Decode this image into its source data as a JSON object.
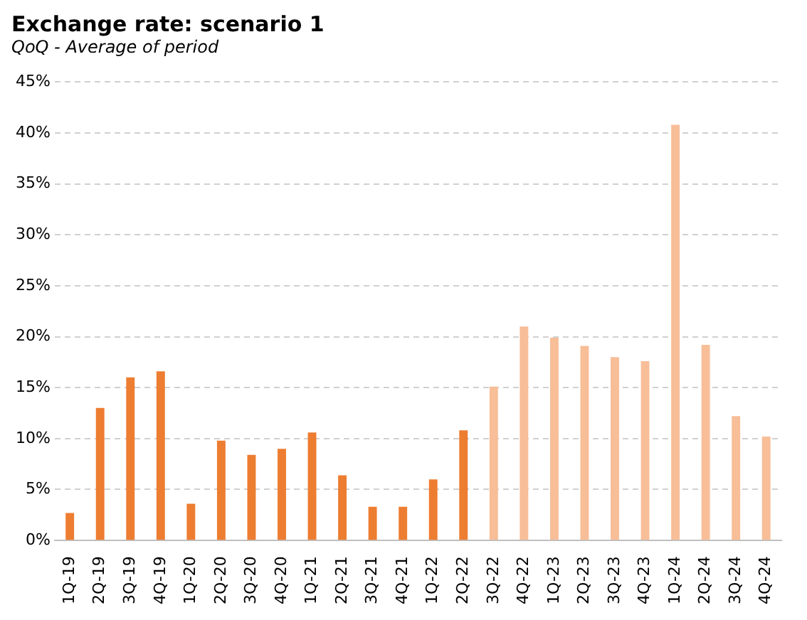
{
  "chart_data": {
    "type": "bar",
    "title": "Exchange rate: scenario 1",
    "subtitle": "QoQ - Average of period",
    "categories": [
      "1Q-19",
      "2Q-19",
      "3Q-19",
      "4Q-19",
      "1Q-20",
      "2Q-20",
      "3Q-20",
      "4Q-20",
      "1Q-21",
      "2Q-21",
      "3Q-21",
      "4Q-21",
      "1Q-22",
      "2Q-22",
      "3Q-22",
      "4Q-22",
      "1Q-23",
      "2Q-23",
      "3Q-23",
      "4Q-23",
      "1Q-24",
      "2Q-24",
      "3Q-24",
      "4Q-24"
    ],
    "values": [
      2.7,
      13.0,
      16.0,
      16.6,
      3.6,
      9.8,
      8.4,
      9.0,
      10.6,
      6.4,
      3.3,
      3.3,
      6.0,
      10.8,
      15.1,
      21.0,
      19.9,
      19.1,
      18.0,
      17.6,
      40.8,
      19.2,
      12.2,
      10.2
    ],
    "colors": [
      "#ed7d31",
      "#ed7d31",
      "#ed7d31",
      "#ed7d31",
      "#ed7d31",
      "#ed7d31",
      "#ed7d31",
      "#ed7d31",
      "#ed7d31",
      "#ed7d31",
      "#ed7d31",
      "#ed7d31",
      "#ed7d31",
      "#ed7d31",
      "#f7be98",
      "#f7be98",
      "#f7be98",
      "#f7be98",
      "#f7be98",
      "#f7be98",
      "#f7be98",
      "#f7be98",
      "#f7be98",
      "#f7be98"
    ],
    "ylim": [
      0,
      45
    ],
    "yticks": [
      {
        "value": 0,
        "label": "0%"
      },
      {
        "value": 5,
        "label": "5%"
      },
      {
        "value": 10,
        "label": "10%"
      },
      {
        "value": 15,
        "label": "15%"
      },
      {
        "value": 20,
        "label": "20%"
      },
      {
        "value": 25,
        "label": "25%"
      },
      {
        "value": 30,
        "label": "30%"
      },
      {
        "value": 35,
        "label": "35%"
      },
      {
        "value": 40,
        "label": "40%"
      },
      {
        "value": 45,
        "label": "45%"
      }
    ],
    "grid": "y",
    "legend": false
  }
}
